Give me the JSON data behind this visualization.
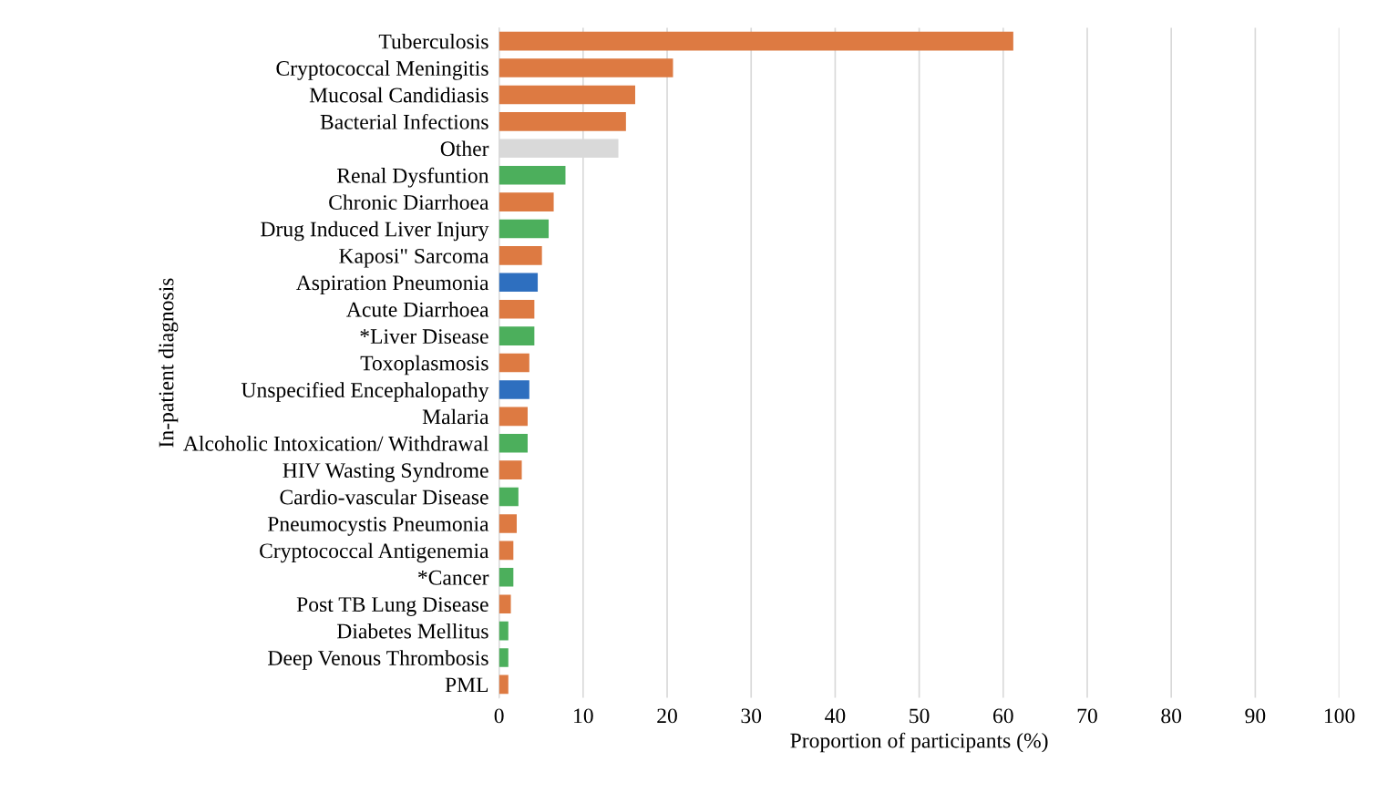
{
  "chart_data": {
    "type": "bar",
    "orientation": "horizontal",
    "xlabel": "Proportion of participants (%)",
    "ylabel": "In-patient diagnosis",
    "categories": [
      "Tuberculosis",
      "Cryptococcal Meningitis",
      "Mucosal Candidiasis",
      "Bacterial Infections",
      "Other",
      "Renal Dysfuntion",
      "Chronic Diarrhoea",
      "Drug Induced Liver Injury",
      "Kaposi\" Sarcoma",
      "Aspiration Pneumonia",
      "Acute Diarrhoea",
      "*Liver Disease",
      "Toxoplasmosis",
      "Unspecified Encephalopathy",
      "Malaria",
      "Alcoholic Intoxication/ Withdrawal",
      "HIV Wasting Syndrome",
      "Cardio-vascular Disease",
      "Pneumocystis Pneumonia",
      "Cryptococcal Antigenemia",
      "*Cancer",
      "Post TB Lung Disease",
      "Diabetes Mellitus",
      "Deep Venous Thrombosis",
      "PML"
    ],
    "values": [
      61.2,
      20.7,
      16.2,
      15.1,
      14.2,
      7.9,
      6.5,
      5.9,
      5.1,
      4.6,
      4.2,
      4.2,
      3.6,
      3.6,
      3.4,
      3.4,
      2.7,
      2.3,
      2.1,
      1.7,
      1.7,
      1.4,
      1.1,
      1.1,
      1.1
    ],
    "colors": [
      "#dd7a42",
      "#dd7a42",
      "#dd7a42",
      "#dd7a42",
      "#d9d9d9",
      "#4caf5c",
      "#dd7a42",
      "#4caf5c",
      "#dd7a42",
      "#2e6fbf",
      "#dd7a42",
      "#4caf5c",
      "#dd7a42",
      "#2e6fbf",
      "#dd7a42",
      "#4caf5c",
      "#dd7a42",
      "#4caf5c",
      "#dd7a42",
      "#dd7a42",
      "#4caf5c",
      "#dd7a42",
      "#4caf5c",
      "#4caf5c",
      "#dd7a42"
    ],
    "xlim": [
      0,
      100
    ],
    "xticks": [
      0,
      10,
      20,
      30,
      40,
      50,
      60,
      70,
      80,
      90,
      100
    ],
    "grid": "x",
    "legend": false
  }
}
